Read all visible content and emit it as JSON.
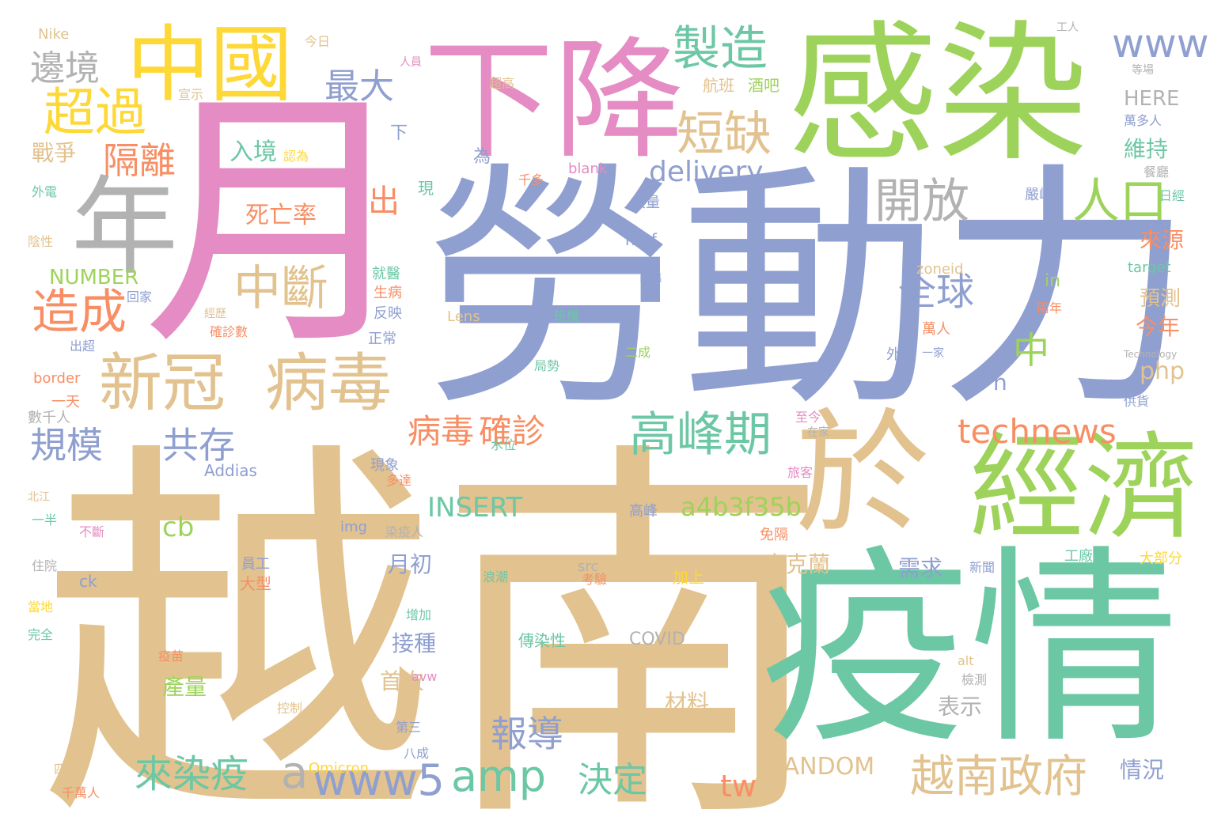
{
  "palette": {
    "tan": "#e2c28e",
    "green": "#9dd35a",
    "blue": "#8f9fd0",
    "pink": "#e48cc3",
    "orange": "#f88e64",
    "teal": "#6cc7a5",
    "yellow": "#fed836",
    "gray": "#b2b2b2"
  },
  "words": [
    {
      "text": "越南",
      "color": "#e2c28e"
    },
    {
      "text": "勞動力",
      "color": "#8f9fd0"
    },
    {
      "text": "月",
      "color": "#e48cc3"
    },
    {
      "text": "疫情",
      "color": "#6cc7a5"
    },
    {
      "text": "感染",
      "color": "#9dd35a"
    },
    {
      "text": "下降",
      "color": "#e48cc3"
    },
    {
      "text": "年",
      "color": "#b2b2b2"
    },
    {
      "text": "中國",
      "color": "#fed836"
    },
    {
      "text": "經濟",
      "color": "#9dd35a"
    },
    {
      "text": "於",
      "color": "#e2c28e"
    },
    {
      "text": "新冠",
      "color": "#e2c28e"
    },
    {
      "text": "病毒",
      "color": "#e2c28e"
    },
    {
      "text": "超過",
      "color": "#fed836"
    },
    {
      "text": "造成",
      "color": "#f88e64"
    },
    {
      "text": "中斷",
      "color": "#e2c28e"
    },
    {
      "text": "製造",
      "color": "#6cc7a5"
    },
    {
      "text": "短缺",
      "color": "#e2c28e"
    },
    {
      "text": "開放",
      "color": "#b2b2b2"
    },
    {
      "text": "人口",
      "color": "#9dd35a"
    },
    {
      "text": "www",
      "color": "#8f9fd0"
    },
    {
      "text": "delivery",
      "color": "#8f9fd0"
    },
    {
      "text": "高峰期",
      "color": "#6cc7a5"
    },
    {
      "text": "technews",
      "color": "#f88e64"
    },
    {
      "text": "越南政府",
      "color": "#e2c28e"
    },
    {
      "text": "全球",
      "color": "#8f9fd0"
    },
    {
      "text": "邊境",
      "color": "#b2b2b2"
    },
    {
      "text": "隔離",
      "color": "#f88e64"
    },
    {
      "text": "最大",
      "color": "#8f9fd0"
    },
    {
      "text": "規模",
      "color": "#8f9fd0"
    },
    {
      "text": "共存",
      "color": "#8f9fd0"
    },
    {
      "text": "病毒",
      "color": "#f88e64"
    },
    {
      "text": "確診",
      "color": "#f88e64"
    },
    {
      "text": "amp",
      "color": "#6cc7a5"
    },
    {
      "text": "www5",
      "color": "#8f9fd0"
    },
    {
      "text": "來染疫",
      "color": "#6cc7a5"
    },
    {
      "text": "報導",
      "color": "#8f9fd0"
    },
    {
      "text": "決定",
      "color": "#6cc7a5"
    },
    {
      "text": "INSERT",
      "color": "#6cc7a5"
    },
    {
      "text": "a4b3f35b",
      "color": "#9dd35a"
    },
    {
      "text": "tw",
      "color": "#f88e64"
    },
    {
      "text": "RANDOM",
      "color": "#e2c28e"
    },
    {
      "text": "死亡率",
      "color": "#f88e64"
    },
    {
      "text": "入境",
      "color": "#6cc7a5"
    },
    {
      "text": "NUMBER",
      "color": "#9dd35a"
    },
    {
      "text": "戰爭",
      "color": "#e2c28e"
    },
    {
      "text": "出",
      "color": "#f88e64"
    },
    {
      "text": "中",
      "color": "#9dd35a"
    },
    {
      "text": "a",
      "color": "#b2b2b2"
    },
    {
      "text": "cb",
      "color": "#9dd35a"
    },
    {
      "text": "php",
      "color": "#e2c28e"
    },
    {
      "text": "n",
      "color": "#8f9fd0"
    },
    {
      "text": "月初",
      "color": "#8f9fd0"
    },
    {
      "text": "烏克蘭",
      "color": "#e2c28e"
    },
    {
      "text": "需求",
      "color": "#8f9fd0"
    },
    {
      "text": "接種",
      "color": "#8f9fd0"
    },
    {
      "text": "首次",
      "color": "#e2c28e"
    },
    {
      "text": "產量",
      "color": "#9dd35a"
    },
    {
      "text": "材料",
      "color": "#e2c28e"
    },
    {
      "text": "表示",
      "color": "#b2b2b2"
    },
    {
      "text": "情況",
      "color": "#8f9fd0"
    },
    {
      "text": "今年",
      "color": "#f88e64"
    },
    {
      "text": "來源",
      "color": "#f88e64"
    },
    {
      "text": "預測",
      "color": "#e2c28e"
    },
    {
      "text": "維持",
      "color": "#6cc7a5"
    },
    {
      "text": "HERE",
      "color": "#b2b2b2"
    },
    {
      "text": "COVID",
      "color": "#b2b2b2"
    },
    {
      "text": "blank",
      "color": "#e48cc3"
    },
    {
      "text": "href",
      "color": "#8f9fd0"
    },
    {
      "text": "Addias",
      "color": "#8f9fd0"
    },
    {
      "text": "Omicron",
      "color": "#fed836"
    },
    {
      "text": "Nike",
      "color": "#e2c28e"
    },
    {
      "text": "zoneid",
      "color": "#e2c28e"
    },
    {
      "text": "target",
      "color": "#6cc7a5"
    },
    {
      "text": "border",
      "color": "#f88e64"
    },
    {
      "text": "Lens",
      "color": "#e2c28e"
    },
    {
      "text": "src",
      "color": "#b2b2b2"
    },
    {
      "text": "img",
      "color": "#8f9fd0"
    },
    {
      "text": "avw",
      "color": "#e48cc3"
    },
    {
      "text": "alt",
      "color": "#e2c28e"
    },
    {
      "text": "ck",
      "color": "#8f9fd0"
    },
    {
      "text": "in",
      "color": "#9dd35a"
    },
    {
      "text": "Technology",
      "color": "#b2b2b2"
    },
    {
      "text": "航班",
      "color": "#e2c28e"
    },
    {
      "text": "酒吧",
      "color": "#9dd35a"
    },
    {
      "text": "傳染性",
      "color": "#6cc7a5"
    },
    {
      "text": "加上",
      "color": "#fed836"
    },
    {
      "text": "大型",
      "color": "#f88e64"
    },
    {
      "text": "員工",
      "color": "#8f9fd0"
    },
    {
      "text": "一天",
      "color": "#f88e64"
    },
    {
      "text": "工廠",
      "color": "#6cc7a5"
    },
    {
      "text": "大部分",
      "color": "#fed836"
    },
    {
      "text": "外國",
      "color": "#8f9fd0"
    },
    {
      "text": "萬人",
      "color": "#f88e64"
    },
    {
      "text": "數千人",
      "color": "#b2b2b2"
    },
    {
      "text": "高峰",
      "color": "#8f9fd0"
    },
    {
      "text": "免隔",
      "color": "#f88e64"
    },
    {
      "text": "嚴峻",
      "color": "#8f9fd0"
    },
    {
      "text": "大量",
      "color": "#8f9fd0"
    },
    {
      "text": "現象",
      "color": "#8f9fd0"
    },
    {
      "text": "正常",
      "color": "#8f9fd0"
    },
    {
      "text": "反映",
      "color": "#8f9fd0"
    },
    {
      "text": "生病",
      "color": "#f88e64"
    },
    {
      "text": "就醫",
      "color": "#6cc7a5"
    },
    {
      "text": "回家",
      "color": "#8f9fd0"
    },
    {
      "text": "宣示",
      "color": "#e2c28e"
    },
    {
      "text": "今日",
      "color": "#e2c28e"
    },
    {
      "text": "人員",
      "color": "#e48cc3"
    },
    {
      "text": "超高",
      "color": "#e2c28e"
    },
    {
      "text": "萬多人",
      "color": "#8f9fd0"
    },
    {
      "text": "餐廳",
      "color": "#b2b2b2"
    },
    {
      "text": "供貨",
      "color": "#8f9fd0"
    },
    {
      "text": "千萬人",
      "color": "#f88e64"
    },
    {
      "text": "四次",
      "color": "#e2c28e"
    },
    {
      "text": "住院",
      "color": "#b2b2b2"
    },
    {
      "text": "當地",
      "color": "#fed836"
    },
    {
      "text": "完全",
      "color": "#6cc7a5"
    },
    {
      "text": "不斷",
      "color": "#e48cc3"
    },
    {
      "text": "一半",
      "color": "#6cc7a5"
    },
    {
      "text": "北江",
      "color": "#e2c28e"
    },
    {
      "text": "陰性",
      "color": "#e2c28e"
    },
    {
      "text": "外電",
      "color": "#6cc7a5"
    },
    {
      "text": "出超",
      "color": "#8f9fd0"
    },
    {
      "text": "疫苗",
      "color": "#f88e64"
    },
    {
      "text": "控制",
      "color": "#e2c28e"
    },
    {
      "text": "增加",
      "color": "#6cc7a5"
    },
    {
      "text": "浪潮",
      "color": "#6cc7a5"
    },
    {
      "text": "考驗",
      "color": "#f88e64"
    },
    {
      "text": "檢測",
      "color": "#b2b2b2"
    },
    {
      "text": "新聞",
      "color": "#8f9fd0"
    },
    {
      "text": "兩年",
      "color": "#f88e64"
    },
    {
      "text": "多達",
      "color": "#f88e64"
    },
    {
      "text": "旅客",
      "color": "#e48cc3"
    },
    {
      "text": "至今",
      "color": "#e48cc3"
    },
    {
      "text": "在家",
      "color": "#b2b2b2"
    },
    {
      "text": "染疫人",
      "color": "#b2b2b2"
    },
    {
      "text": "局勢",
      "color": "#6cc7a5"
    },
    {
      "text": "二成",
      "color": "#9dd35a"
    },
    {
      "text": "班機",
      "color": "#6cc7a5"
    },
    {
      "text": "一家",
      "color": "#8f9fd0"
    },
    {
      "text": "確診數",
      "color": "#f88e64"
    },
    {
      "text": "經歷",
      "color": "#e2c28e"
    },
    {
      "text": "面臨",
      "color": "#8f9fd0"
    },
    {
      "text": "千多",
      "color": "#f88e64"
    },
    {
      "text": "為",
      "color": "#8f9fd0"
    },
    {
      "text": "下",
      "color": "#8f9fd0"
    },
    {
      "text": "現",
      "color": "#6cc7a5"
    },
    {
      "text": "等場",
      "color": "#b2b2b2"
    },
    {
      "text": "日經",
      "color": "#6cc7a5"
    },
    {
      "text": "水位",
      "color": "#6cc7a5"
    },
    {
      "text": "第三",
      "color": "#8f9fd0"
    },
    {
      "text": "八成",
      "color": "#8f9fd0"
    },
    {
      "text": "認為",
      "color": "#fed836"
    },
    {
      "text": "工人",
      "color": "#b2b2b2"
    }
  ]
}
